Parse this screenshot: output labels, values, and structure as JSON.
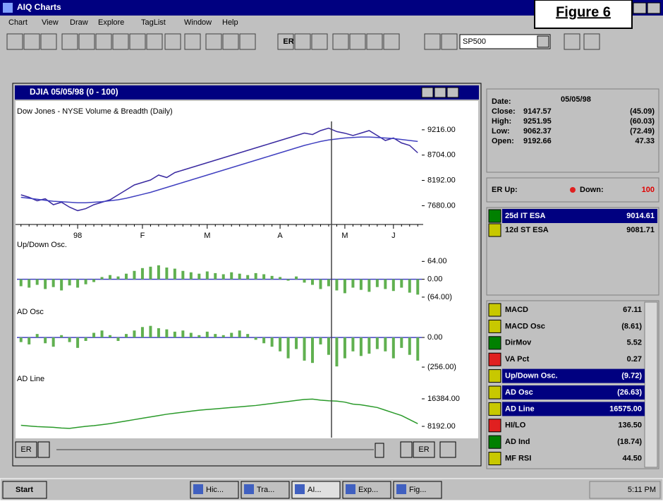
{
  "app": {
    "title": "AIQ Charts",
    "figure": "Figure 6",
    "menu": [
      "Chart",
      "View",
      "Draw",
      "Explore",
      "TagList",
      "Window",
      "Help"
    ],
    "toolbar": {
      "er": "ER",
      "symbol": "SP500"
    }
  },
  "window": {
    "title": "DJIA 05/05/98 (0 - 100)",
    "subtitle": "Dow Jones - NYSE Volume & Breadth (Daily)",
    "scroll": {
      "left": "ER",
      "right": "ER"
    }
  },
  "chart_data": [
    {
      "type": "line",
      "categories": [
        null,
        null,
        null,
        null,
        null,
        null,
        null,
        "98",
        null,
        null,
        null,
        null,
        null,
        null,
        null,
        "F",
        null,
        null,
        null,
        null,
        null,
        null,
        null,
        "M",
        null,
        null,
        null,
        null,
        null,
        null,
        null,
        null,
        "A",
        null,
        null,
        null,
        null,
        null,
        null,
        null,
        "M",
        null,
        null,
        null,
        null,
        null,
        "J",
        null,
        null,
        null
      ],
      "series": [
        {
          "color": "#3a2aa0",
          "values": [
            7900,
            7850,
            7780,
            7820,
            7700,
            7750,
            7650,
            7580,
            7620,
            7700,
            7750,
            7800,
            7900,
            8000,
            8100,
            8150,
            8200,
            8300,
            8250,
            8350,
            8400,
            8450,
            8500,
            8550,
            8600,
            8650,
            8700,
            8750,
            8800,
            8850,
            8900,
            8950,
            9000,
            9050,
            9100,
            9150,
            9120,
            9200,
            9250,
            9180,
            9147,
            9100,
            9150,
            9200,
            9100,
            9000,
            9050,
            8950,
            8900,
            8750
          ]
        },
        {
          "color": "#4040c0",
          "values": [
            7850,
            7830,
            7810,
            7790,
            7770,
            7760,
            7750,
            7740,
            7740,
            7750,
            7760,
            7780,
            7800,
            7830,
            7870,
            7910,
            7950,
            8000,
            8050,
            8100,
            8150,
            8200,
            8250,
            8300,
            8350,
            8400,
            8450,
            8500,
            8550,
            8600,
            8650,
            8700,
            8750,
            8800,
            8850,
            8900,
            8940,
            8980,
            9010,
            9030,
            9050,
            9060,
            9070,
            9070,
            9060,
            9050,
            9040,
            9020,
            9000,
            8980
          ]
        }
      ],
      "ylim": [
        7300,
        9700
      ],
      "yticks": [
        {
          "value": 9216,
          "label": "9216.00"
        },
        {
          "value": 8704,
          "label": "8704.00"
        },
        {
          "value": 8192,
          "label": "8192.00"
        },
        {
          "value": 7680,
          "label": "7680.00"
        }
      ]
    },
    {
      "type": "bar",
      "title": "Up/Down Osc.",
      "color": "#60b050",
      "values": [
        -25,
        -30,
        -20,
        -35,
        -28,
        -40,
        -22,
        -30,
        -18,
        -10,
        8,
        15,
        10,
        20,
        30,
        40,
        45,
        50,
        42,
        38,
        30,
        25,
        20,
        28,
        22,
        18,
        25,
        20,
        15,
        22,
        18,
        12,
        8,
        -5,
        10,
        -12,
        -20,
        -35,
        -25,
        -40,
        -50,
        -30,
        -38,
        -45,
        -28,
        -35,
        -42,
        -30,
        -48,
        -55
      ],
      "ylim": [
        -92,
        128
      ],
      "yticks": [
        {
          "value": 64,
          "label": "64.00"
        },
        {
          "value": 0,
          "label": "0.00"
        },
        {
          "value": -64,
          "label": "(64.00)"
        }
      ]
    },
    {
      "type": "bar",
      "title": "AD Osc",
      "color": "#60b050",
      "values": [
        -40,
        -60,
        30,
        -50,
        -80,
        20,
        -40,
        -90,
        -30,
        40,
        60,
        20,
        -30,
        30,
        60,
        90,
        100,
        80,
        70,
        50,
        60,
        40,
        20,
        50,
        30,
        20,
        40,
        60,
        30,
        -20,
        -50,
        -80,
        -120,
        -180,
        -100,
        -200,
        -220,
        -60,
        -150,
        -250,
        -180,
        -120,
        -160,
        -140,
        -100,
        -120,
        -180,
        -90,
        -150,
        -200
      ],
      "ylim": [
        -286,
        232
      ],
      "yticks": [
        {
          "value": 0,
          "label": "0.00"
        },
        {
          "value": -256,
          "label": "(256.00)"
        }
      ]
    },
    {
      "type": "line",
      "title": "AD Line",
      "series": [
        {
          "color": "#2a9a2a",
          "values": [
            8500,
            8300,
            8100,
            8000,
            7900,
            7700,
            7600,
            7900,
            8200,
            8400,
            8700,
            9000,
            9400,
            9800,
            10200,
            10600,
            11000,
            11400,
            11800,
            12100,
            12400,
            12700,
            13000,
            13200,
            13400,
            13600,
            13800,
            14000,
            14200,
            14400,
            14700,
            15000,
            15300,
            15600,
            15900,
            16200,
            16300,
            16000,
            15800,
            15700,
            15400,
            14800,
            14600,
            14200,
            13800,
            13000,
            12200,
            11400,
            10200,
            9000
          ]
        }
      ],
      "ylim": [
        5250,
        22684
      ],
      "yticks": [
        {
          "value": 16384,
          "label": "16384.00"
        },
        {
          "value": 8192,
          "label": "8192.00"
        }
      ]
    }
  ],
  "info": {
    "date_label": "Date:",
    "date": "05/05/98",
    "rows": [
      [
        "Close:",
        "9147.57",
        "(45.09)"
      ],
      [
        "High:",
        "9251.95",
        "(60.03)"
      ],
      [
        "Low:",
        "9062.37",
        "(72.49)"
      ],
      [
        "Open:",
        "9192.66",
        "47.33"
      ]
    ],
    "er_up": "ER Up:",
    "er_down": "Down:",
    "er_down_value": "100"
  },
  "esa": [
    {
      "name": "25d IT ESA",
      "value": "9014.61",
      "icon": "#008000",
      "selected": true
    },
    {
      "name": "12d ST ESA",
      "value": "9081.71",
      "icon": "#c8c800",
      "selected": false
    }
  ],
  "indicators": [
    {
      "name": "MACD",
      "value": "67.11",
      "icon": "#c8c800",
      "selected": false
    },
    {
      "name": "MACD Osc",
      "value": "(8.61)",
      "icon": "#c8c800",
      "selected": false
    },
    {
      "name": "DirMov",
      "value": "5.52",
      "icon": "#008000",
      "selected": false
    },
    {
      "name": "VA Pct",
      "value": "0.27",
      "icon": "#e02020",
      "selected": false
    },
    {
      "name": "Up/Down Osc.",
      "value": "(9.72)",
      "icon": "#c8c800",
      "selected": true
    },
    {
      "name": "AD Osc",
      "value": "(26.63)",
      "icon": "#c8c800",
      "selected": true
    },
    {
      "name": "AD Line",
      "value": "16575.00",
      "icon": "#c8c800",
      "selected": true
    },
    {
      "name": "HI/LO",
      "value": "136.50",
      "icon": "#e02020",
      "selected": false
    },
    {
      "name": "AD Ind",
      "value": "(18.74)",
      "icon": "#008000",
      "selected": false
    },
    {
      "name": "MF RSI",
      "value": "44.50",
      "icon": "#c8c800",
      "selected": false
    }
  ],
  "taskbar": {
    "start": "Start",
    "items": [
      "Hic...",
      "Tra...",
      "AI...",
      "Exp...",
      "Fig..."
    ],
    "clock": "5:11 PM"
  }
}
